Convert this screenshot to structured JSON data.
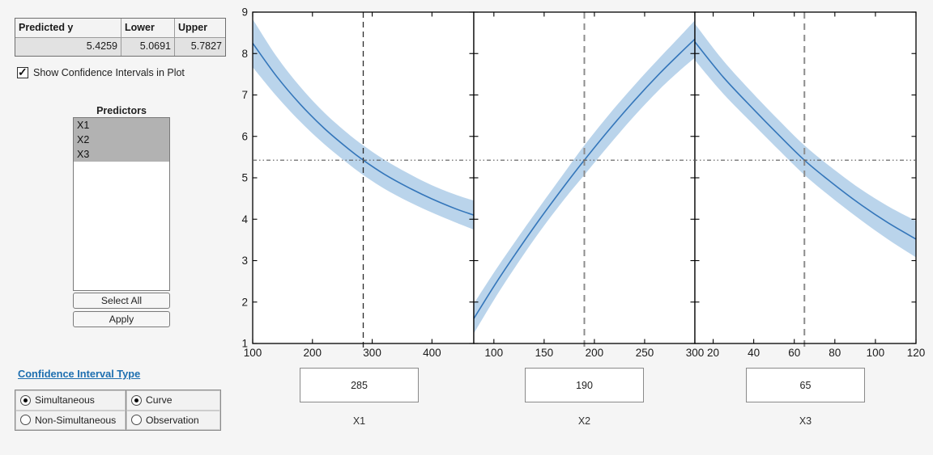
{
  "prediction_table": {
    "headers": [
      "Predicted y",
      "Lower",
      "Upper"
    ],
    "values": [
      "5.4259",
      "5.0691",
      "5.7827"
    ]
  },
  "show_ci_checkbox": {
    "label": "Show Confidence Intervals in Plot",
    "checked": true
  },
  "predictors_panel": {
    "title": "Predictors",
    "items": [
      "X1",
      "X2",
      "X3"
    ],
    "selected_indices": [
      0,
      1,
      2
    ],
    "select_all_label": "Select All",
    "apply_label": "Apply"
  },
  "ci_type": {
    "title": "Confidence Interval Type",
    "groups": [
      {
        "options": [
          {
            "label": "Simultaneous",
            "selected": true
          },
          {
            "label": "Non-Simultaneous",
            "selected": false
          }
        ]
      },
      {
        "options": [
          {
            "label": "Curve",
            "selected": true
          },
          {
            "label": "Observation",
            "selected": false
          }
        ]
      }
    ]
  },
  "predictor_inputs": [
    {
      "label": "X1",
      "value": "285"
    },
    {
      "label": "X2",
      "value": "190"
    },
    {
      "label": "X3",
      "value": "65"
    }
  ],
  "colors": {
    "curve": "#3476ba",
    "band": "#bad4eb",
    "axis": "#000000",
    "dotted_line": "#5a5a5a",
    "dashed_line_first": "#2b2b2b",
    "dashed_line": "#8c8c8c",
    "selection_bg": "#b2b2b2",
    "link": "#1e6fb0"
  },
  "chart_data": [
    {
      "type": "line",
      "name": "X1",
      "xlabel": "X1",
      "xlim": [
        100,
        470
      ],
      "ylim": [
        1,
        9
      ],
      "xticks": [
        100,
        200,
        300,
        400
      ],
      "yticks": [
        1,
        2,
        3,
        4,
        5,
        6,
        7,
        8,
        9
      ],
      "current_x": 285,
      "predicted_y": 5.4259,
      "x": [
        100,
        140,
        180,
        220,
        260,
        285,
        320,
        360,
        400,
        440,
        470
      ],
      "y": [
        8.25,
        7.45,
        6.77,
        6.19,
        5.7,
        5.4259,
        5.09,
        4.77,
        4.49,
        4.25,
        4.1
      ],
      "lower": [
        7.67,
        6.97,
        6.35,
        5.81,
        5.34,
        5.0691,
        4.74,
        4.43,
        4.16,
        3.92,
        3.75
      ],
      "upper": [
        8.83,
        7.93,
        7.19,
        6.57,
        6.06,
        5.7827,
        5.44,
        5.11,
        4.82,
        4.59,
        4.45
      ]
    },
    {
      "type": "line",
      "name": "X2",
      "xlabel": "X2",
      "xlim": [
        80,
        300
      ],
      "ylim": [
        1,
        9
      ],
      "xticks": [
        100,
        150,
        200,
        250,
        300
      ],
      "yticks": [
        1,
        2,
        3,
        4,
        5,
        6,
        7,
        8,
        9
      ],
      "current_x": 190,
      "predicted_y": 5.4259,
      "x": [
        80,
        100,
        120,
        145,
        170,
        190,
        215,
        240,
        265,
        285,
        300
      ],
      "y": [
        1.6,
        2.38,
        3.11,
        3.98,
        4.8,
        5.4259,
        6.17,
        6.87,
        7.52,
        8.0,
        8.35
      ],
      "lower": [
        1.24,
        2.05,
        2.8,
        3.68,
        4.48,
        5.0691,
        5.8,
        6.5,
        7.14,
        7.59,
        7.9
      ],
      "upper": [
        1.96,
        2.71,
        3.42,
        4.28,
        5.12,
        5.7827,
        6.54,
        7.24,
        7.9,
        8.41,
        8.8
      ]
    },
    {
      "type": "line",
      "name": "X3",
      "xlabel": "X3",
      "xlim": [
        11,
        120
      ],
      "ylim": [
        1,
        9
      ],
      "xticks": [
        20,
        40,
        60,
        80,
        100,
        120
      ],
      "yticks": [
        1,
        2,
        3,
        4,
        5,
        6,
        7,
        8,
        9
      ],
      "current_x": 65,
      "predicted_y": 5.4259,
      "x": [
        11,
        25,
        40,
        52,
        65,
        78,
        92,
        106,
        120
      ],
      "y": [
        8.28,
        7.43,
        6.65,
        6.05,
        5.4259,
        4.9,
        4.38,
        3.92,
        3.52
      ],
      "lower": [
        7.84,
        7.03,
        6.28,
        5.69,
        5.0691,
        4.54,
        4.01,
        3.52,
        3.08
      ],
      "upper": [
        8.72,
        7.83,
        7.02,
        6.41,
        5.7827,
        5.26,
        4.75,
        4.32,
        3.96
      ]
    }
  ]
}
